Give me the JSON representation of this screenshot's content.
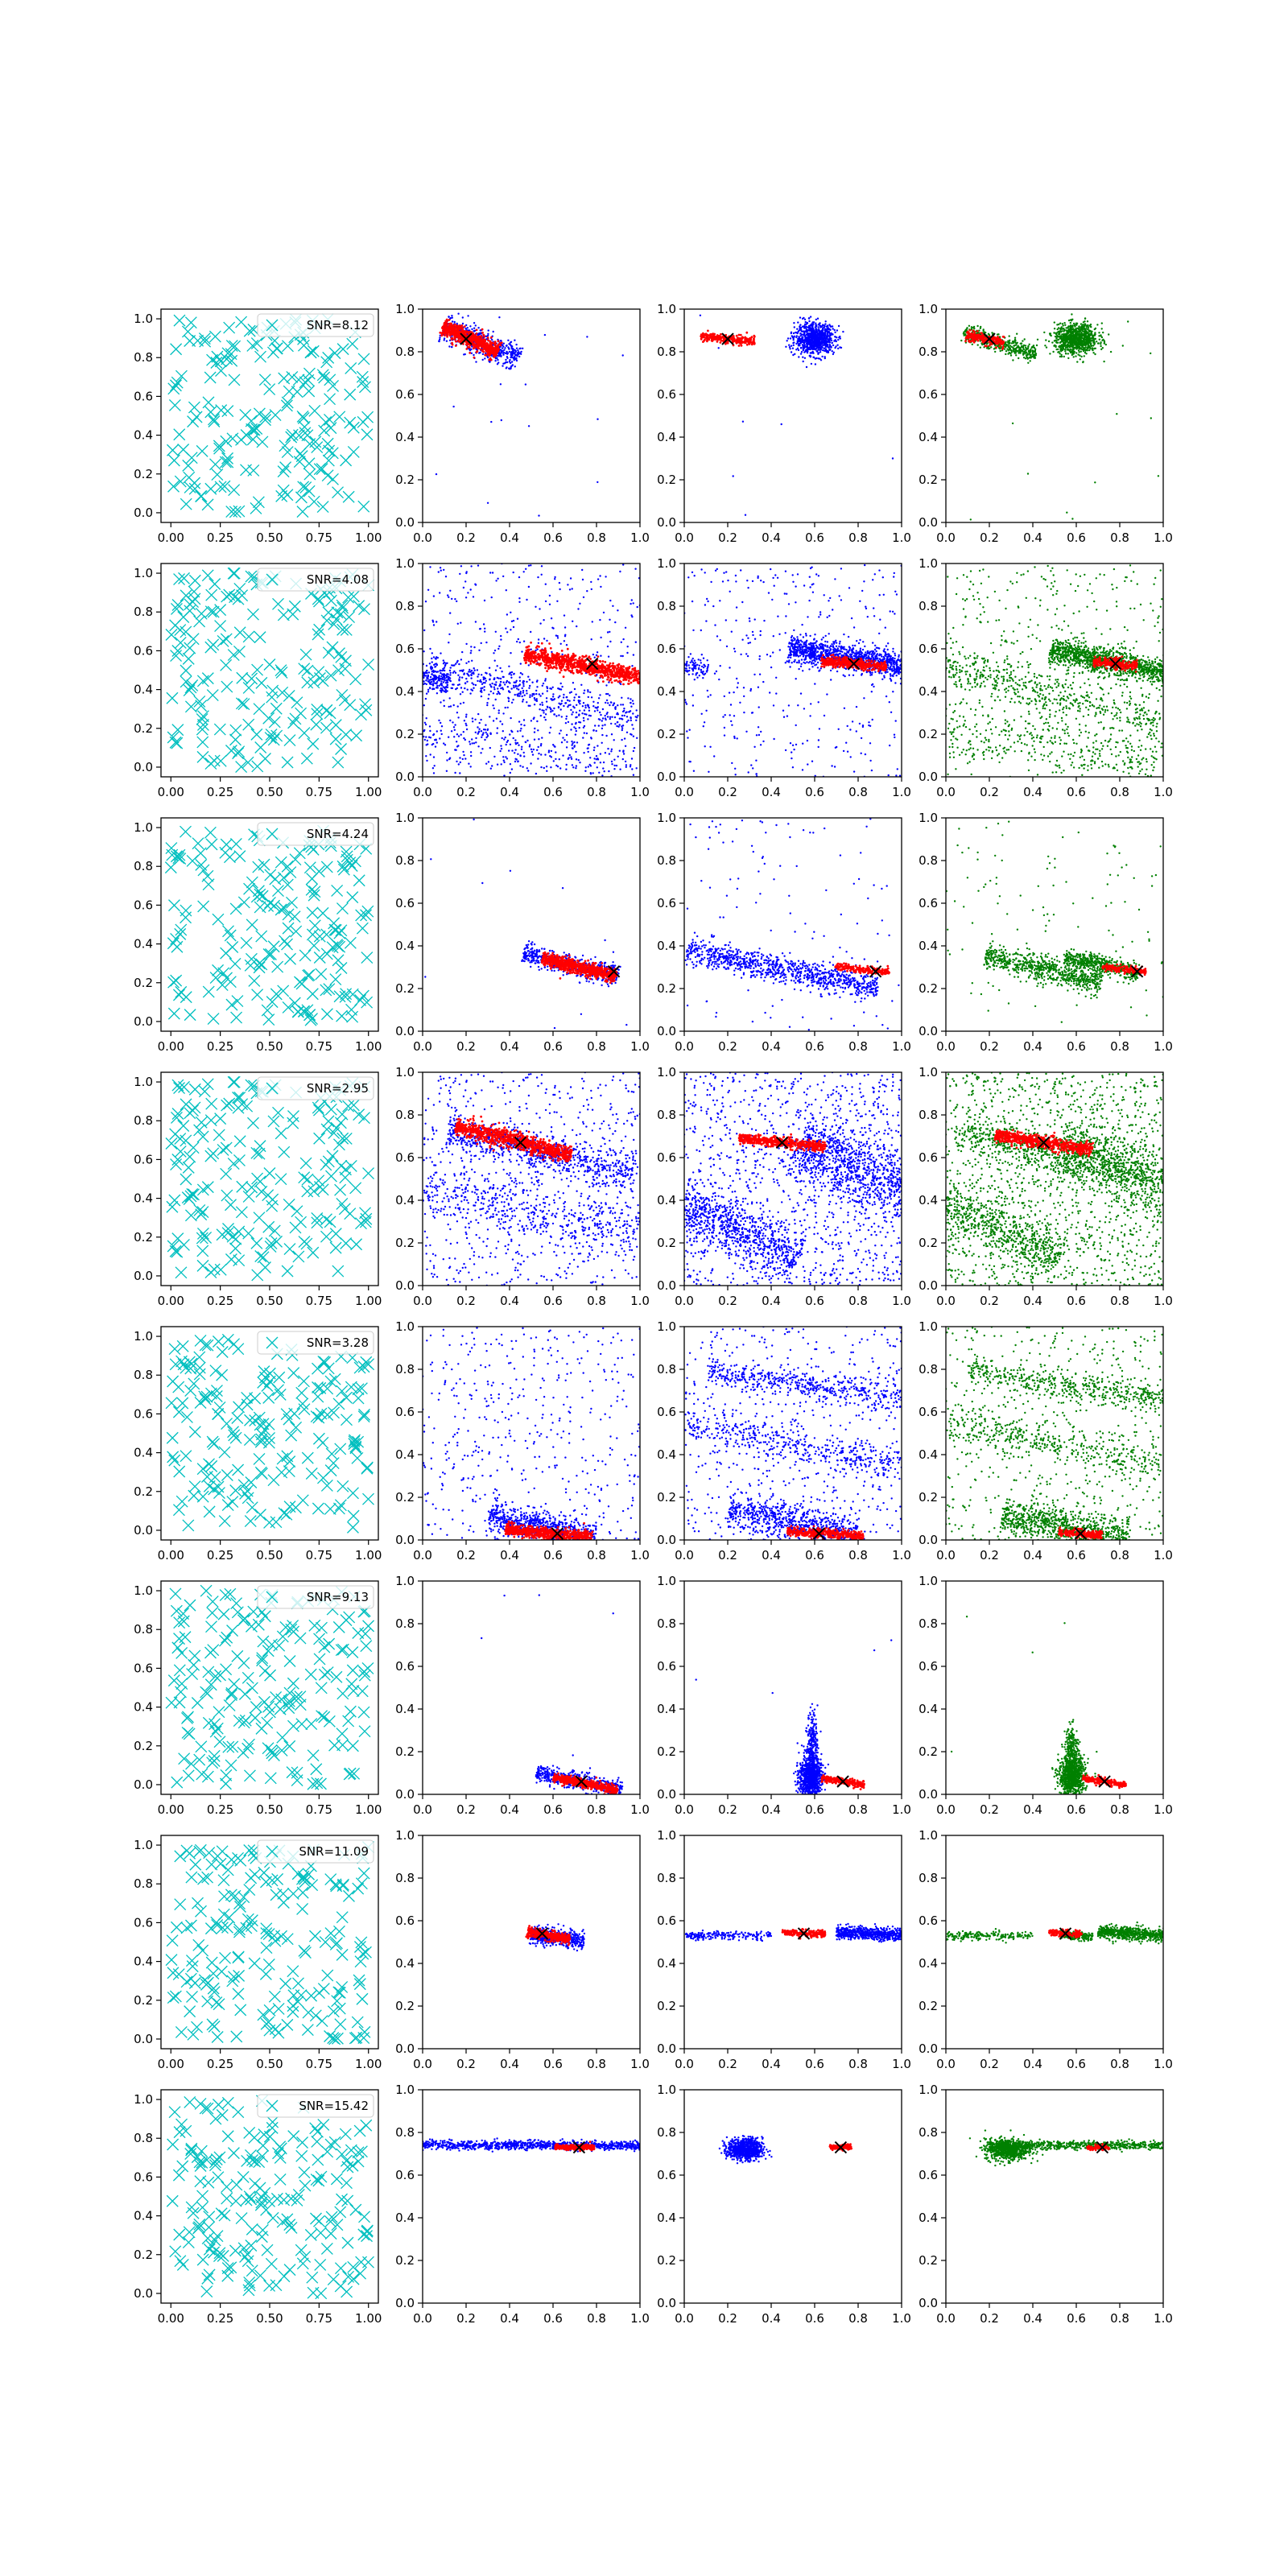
{
  "figure": {
    "rows": 8,
    "cols": 4,
    "colors": {
      "random": "#00bfbf",
      "blue": "#0000ff",
      "red": "#ff0000",
      "green": "#008000",
      "marker": "#000000"
    }
  },
  "chart_data": {
    "type": "scatter",
    "axes": {
      "random_panel": {
        "xlim": [
          -0.05,
          1.05
        ],
        "ylim": [
          -0.05,
          1.05
        ],
        "xticks": [
          "0.00",
          "0.25",
          "0.50",
          "0.75",
          "1.00"
        ],
        "yticks": [
          "0.0",
          "0.2",
          "0.4",
          "0.6",
          "0.8",
          "1.0"
        ]
      },
      "cluster_panels": {
        "xlim": [
          0,
          1
        ],
        "ylim": [
          0,
          1
        ],
        "xticks": [
          "0.0",
          "0.2",
          "0.4",
          "0.6",
          "0.8",
          "1.0"
        ],
        "yticks": [
          "0.0",
          "0.2",
          "0.4",
          "0.6",
          "0.8",
          "1.0"
        ]
      }
    },
    "rows": [
      {
        "snr": "SNR=8.12",
        "marker": [
          0.2,
          0.86
        ],
        "panel2": {
          "red": {
            "c": [
              0.22,
              0.86
            ],
            "len": 0.28,
            "slope": -0.45,
            "w": 0.018,
            "n": 700
          },
          "blue": [
            {
              "c": [
                0.27,
                0.84
              ],
              "len": 0.38,
              "slope": -0.4,
              "w": 0.03,
              "n": 500
            }
          ],
          "noise": 15
        },
        "panel3": {
          "red": {
            "c": [
              0.2,
              0.86
            ],
            "len": 0.25,
            "slope": -0.1,
            "w": 0.01,
            "n": 250
          },
          "blue": [
            {
              "c": [
                0.6,
                0.86
              ],
              "sx": 0.045,
              "sy": 0.035,
              "n": 900
            }
          ],
          "noise": 8
        },
        "panel4": {
          "red": {
            "c": [
              0.18,
              0.86
            ],
            "len": 0.18,
            "slope": -0.2,
            "w": 0.012,
            "n": 200
          }
        },
        "green": [
          {
            "c": [
              0.25,
              0.84
            ],
            "len": 0.35,
            "slope": -0.3,
            "w": 0.02,
            "n": 400
          },
          {
            "c": [
              0.6,
              0.86
            ],
            "sx": 0.05,
            "sy": 0.035,
            "n": 900
          }
        ],
        "green_noise": 12
      },
      {
        "snr": "SNR=4.08",
        "marker": [
          0.78,
          0.53
        ],
        "panel2": {
          "red": {
            "c": [
              0.74,
              0.52
            ],
            "len": 0.55,
            "slope": -0.2,
            "w": 0.02,
            "n": 900
          },
          "blue": [
            {
              "c": [
                0.45,
                0.4
              ],
              "len": 1.1,
              "slope": -0.25,
              "w": 0.04,
              "n": 500
            },
            {
              "c": [
                0.45,
                0.15
              ],
              "len": 1.1,
              "slope": -0.2,
              "w": 0.07,
              "n": 300
            },
            {
              "c": [
                0.05,
                0.46
              ],
              "len": 0.15,
              "slope": -0.2,
              "w": 0.03,
              "n": 150
            }
          ],
          "noise": 450
        },
        "panel3": {
          "red": {
            "c": [
              0.78,
              0.53
            ],
            "len": 0.3,
            "slope": -0.1,
            "w": 0.012,
            "n": 400
          },
          "blue": [
            {
              "c": [
                0.75,
                0.56
              ],
              "len": 0.55,
              "slope": -0.18,
              "w": 0.03,
              "n": 1100
            },
            {
              "c": [
                0.05,
                0.51
              ],
              "len": 0.12,
              "slope": -0.1,
              "w": 0.02,
              "n": 80
            }
          ],
          "noise": 350
        },
        "panel4": {
          "red": {
            "c": [
              0.78,
              0.53
            ],
            "len": 0.2,
            "slope": -0.1,
            "w": 0.012,
            "n": 250
          }
        },
        "green": [
          {
            "c": [
              0.75,
              0.54
            ],
            "len": 0.55,
            "slope": -0.2,
            "w": 0.03,
            "n": 1100
          },
          {
            "c": [
              0.45,
              0.4
            ],
            "len": 1.1,
            "slope": -0.25,
            "w": 0.05,
            "n": 500
          },
          {
            "c": [
              0.45,
              0.15
            ],
            "len": 1.1,
            "slope": -0.2,
            "w": 0.08,
            "n": 300
          }
        ],
        "green_noise": 450
      },
      {
        "snr": "SNR=4.24",
        "marker": [
          0.88,
          0.28
        ],
        "panel2": {
          "red": {
            "c": [
              0.72,
              0.3
            ],
            "len": 0.35,
            "slope": -0.25,
            "w": 0.015,
            "n": 700
          },
          "blue": [
            {
              "c": [
                0.68,
                0.31
              ],
              "len": 0.45,
              "slope": -0.25,
              "w": 0.025,
              "n": 500
            }
          ],
          "noise": 12
        },
        "panel3": {
          "red": {
            "c": [
              0.82,
              0.29
            ],
            "len": 0.25,
            "slope": -0.1,
            "w": 0.008,
            "n": 200
          },
          "blue": [
            {
              "c": [
                0.45,
                0.29
              ],
              "len": 0.9,
              "slope": -0.2,
              "w": 0.03,
              "n": 900
            }
          ],
          "noise": 120
        },
        "panel4": {
          "red": {
            "c": [
              0.82,
              0.29
            ],
            "len": 0.2,
            "slope": -0.12,
            "w": 0.008,
            "n": 150
          }
        },
        "green": [
          {
            "c": [
              0.72,
              0.31
            ],
            "len": 0.35,
            "slope": -0.2,
            "w": 0.02,
            "n": 500
          },
          {
            "c": [
              0.45,
              0.29
            ],
            "len": 0.55,
            "slope": -0.25,
            "w": 0.03,
            "n": 700
          }
        ],
        "green_noise": 110
      },
      {
        "snr": "SNR=2.95",
        "marker": [
          0.45,
          0.67
        ],
        "panel2": {
          "red": {
            "c": [
              0.42,
              0.68
            ],
            "len": 0.55,
            "slope": -0.25,
            "w": 0.02,
            "n": 900
          },
          "blue": [
            {
              "c": [
                0.55,
                0.62
              ],
              "len": 0.9,
              "slope": -0.25,
              "w": 0.04,
              "n": 700
            },
            {
              "c": [
                0.5,
                0.35
              ],
              "len": 1.0,
              "slope": -0.2,
              "w": 0.06,
              "n": 400
            }
          ],
          "noise": 700
        },
        "panel3": {
          "red": {
            "c": [
              0.45,
              0.67
            ],
            "len": 0.4,
            "slope": -0.1,
            "w": 0.012,
            "n": 500
          },
          "blue": [
            {
              "c": [
                0.25,
                0.25
              ],
              "len": 0.6,
              "slope": -0.5,
              "w": 0.06,
              "n": 800
            },
            {
              "c": [
                0.8,
                0.55
              ],
              "len": 0.6,
              "slope": -0.4,
              "w": 0.08,
              "n": 1000
            }
          ],
          "noise": 1100
        },
        "panel4": {
          "red": {
            "c": [
              0.45,
              0.67
            ],
            "len": 0.45,
            "slope": -0.15,
            "w": 0.015,
            "n": 600
          }
        },
        "green": [
          {
            "c": [
              0.25,
              0.25
            ],
            "len": 0.6,
            "slope": -0.5,
            "w": 0.06,
            "n": 600
          },
          {
            "c": [
              0.8,
              0.55
            ],
            "len": 0.6,
            "slope": -0.4,
            "w": 0.08,
            "n": 800
          },
          {
            "c": [
              0.5,
              0.62
            ],
            "len": 0.9,
            "slope": -0.25,
            "w": 0.04,
            "n": 500
          }
        ],
        "green_noise": 1300
      },
      {
        "snr": "SNR=3.28",
        "marker": [
          0.62,
          0.03
        ],
        "panel2": {
          "red": {
            "c": [
              0.58,
              0.03
            ],
            "len": 0.4,
            "slope": -0.1,
            "w": 0.015,
            "n": 600
          },
          "blue": [
            {
              "c": [
                0.55,
                0.06
              ],
              "len": 0.5,
              "slope": -0.2,
              "w": 0.03,
              "n": 700
            }
          ],
          "noise": 450
        },
        "panel3": {
          "red": {
            "c": [
              0.65,
              0.03
            ],
            "len": 0.35,
            "slope": -0.05,
            "w": 0.01,
            "n": 400
          },
          "blue": [
            {
              "c": [
                0.6,
                0.72
              ],
              "len": 1.0,
              "slope": -0.15,
              "w": 0.03,
              "n": 500
            },
            {
              "c": [
                0.5,
                0.45
              ],
              "len": 1.0,
              "slope": -0.2,
              "w": 0.04,
              "n": 400
            },
            {
              "c": [
                0.5,
                0.08
              ],
              "len": 0.6,
              "slope": -0.2,
              "w": 0.04,
              "n": 700
            }
          ],
          "noise": 550
        },
        "panel4": {
          "red": {
            "c": [
              0.62,
              0.03
            ],
            "len": 0.2,
            "slope": -0.05,
            "w": 0.01,
            "n": 200
          }
        },
        "green": [
          {
            "c": [
              0.6,
              0.72
            ],
            "len": 1.0,
            "slope": -0.15,
            "w": 0.03,
            "n": 500
          },
          {
            "c": [
              0.5,
              0.45
            ],
            "len": 1.0,
            "slope": -0.2,
            "w": 0.04,
            "n": 400
          },
          {
            "c": [
              0.55,
              0.06
            ],
            "len": 0.6,
            "slope": -0.2,
            "w": 0.04,
            "n": 800
          }
        ],
        "green_noise": 550
      },
      {
        "snr": "SNR=9.13",
        "marker": [
          0.73,
          0.06
        ],
        "panel2": {
          "red": {
            "c": [
              0.75,
              0.05
            ],
            "len": 0.3,
            "slope": -0.2,
            "w": 0.01,
            "n": 500
          },
          "blue": [
            {
              "c": [
                0.72,
                0.06
              ],
              "len": 0.4,
              "slope": -0.2,
              "w": 0.02,
              "n": 500
            }
          ],
          "noise": 5
        },
        "panel3": {
          "red": {
            "c": [
              0.73,
              0.06
            ],
            "len": 0.2,
            "slope": -0.15,
            "w": 0.008,
            "n": 200
          },
          "blue": [
            {
              "c": [
                0.58,
                0.08
              ],
              "sx": 0.025,
              "sy": 0.05,
              "n": 900
            },
            {
              "c": [
                0.59,
                0.25
              ],
              "sx": 0.012,
              "sy": 0.07,
              "n": 200
            }
          ],
          "noise": 5
        },
        "panel4": {
          "red": {
            "c": [
              0.73,
              0.06
            ],
            "len": 0.2,
            "slope": -0.15,
            "w": 0.008,
            "n": 200
          }
        },
        "green": [
          {
            "c": [
              0.58,
              0.08
            ],
            "sx": 0.03,
            "sy": 0.05,
            "n": 900
          },
          {
            "c": [
              0.58,
              0.22
            ],
            "sx": 0.015,
            "sy": 0.05,
            "n": 200
          }
        ],
        "green_noise": 5
      },
      {
        "snr": "SNR=11.09",
        "marker": [
          0.55,
          0.54
        ],
        "panel2": {
          "red": {
            "c": [
              0.58,
              0.53
            ],
            "len": 0.2,
            "slope": -0.2,
            "w": 0.01,
            "n": 400
          },
          "blue": [
            {
              "c": [
                0.62,
                0.52
              ],
              "len": 0.25,
              "slope": -0.15,
              "w": 0.02,
              "n": 500
            }
          ],
          "noise": 0
        },
        "panel3": {
          "red": {
            "c": [
              0.55,
              0.54
            ],
            "len": 0.2,
            "slope": -0.05,
            "w": 0.008,
            "n": 200
          },
          "blue": [
            {
              "c": [
                0.2,
                0.53
              ],
              "len": 0.4,
              "slope": 0.0,
              "w": 0.01,
              "n": 200
            },
            {
              "c": [
                0.85,
                0.54
              ],
              "len": 0.3,
              "slope": -0.05,
              "w": 0.015,
              "n": 600
            }
          ],
          "noise": 0
        },
        "panel4": {
          "red": {
            "c": [
              0.55,
              0.54
            ],
            "len": 0.15,
            "slope": -0.05,
            "w": 0.008,
            "n": 150
          }
        },
        "green": [
          {
            "c": [
              0.2,
              0.53
            ],
            "len": 0.4,
            "slope": 0.0,
            "w": 0.01,
            "n": 200
          },
          {
            "c": [
              0.85,
              0.54
            ],
            "len": 0.3,
            "slope": -0.05,
            "w": 0.015,
            "n": 600
          },
          {
            "c": [
              0.6,
              0.53
            ],
            "len": 0.15,
            "slope": -0.1,
            "w": 0.01,
            "n": 200
          }
        ],
        "green_noise": 0
      },
      {
        "snr": "SNR=15.42",
        "marker": [
          0.72,
          0.73
        ],
        "panel2": {
          "red": {
            "c": [
              0.7,
              0.73
            ],
            "len": 0.18,
            "slope": 0.0,
            "w": 0.006,
            "n": 300
          },
          "blue": [
            {
              "c": [
                0.5,
                0.74
              ],
              "len": 1.0,
              "slope": 0.0,
              "w": 0.01,
              "n": 900
            }
          ],
          "noise": 0
        },
        "panel3": {
          "red": {
            "c": [
              0.72,
              0.73
            ],
            "len": 0.1,
            "slope": 0.0,
            "w": 0.006,
            "n": 120
          },
          "blue": [
            {
              "c": [
                0.28,
                0.72
              ],
              "sx": 0.04,
              "sy": 0.025,
              "n": 800
            }
          ],
          "noise": 0
        },
        "panel4": {
          "red": {
            "c": [
              0.7,
              0.73
            ],
            "len": 0.1,
            "slope": 0.0,
            "w": 0.006,
            "n": 100
          }
        },
        "green": [
          {
            "c": [
              0.28,
              0.72
            ],
            "sx": 0.05,
            "sy": 0.025,
            "n": 700
          },
          {
            "c": [
              0.6,
              0.74
            ],
            "len": 0.8,
            "slope": 0.0,
            "w": 0.01,
            "n": 600
          }
        ],
        "green_noise": 0
      }
    ]
  }
}
